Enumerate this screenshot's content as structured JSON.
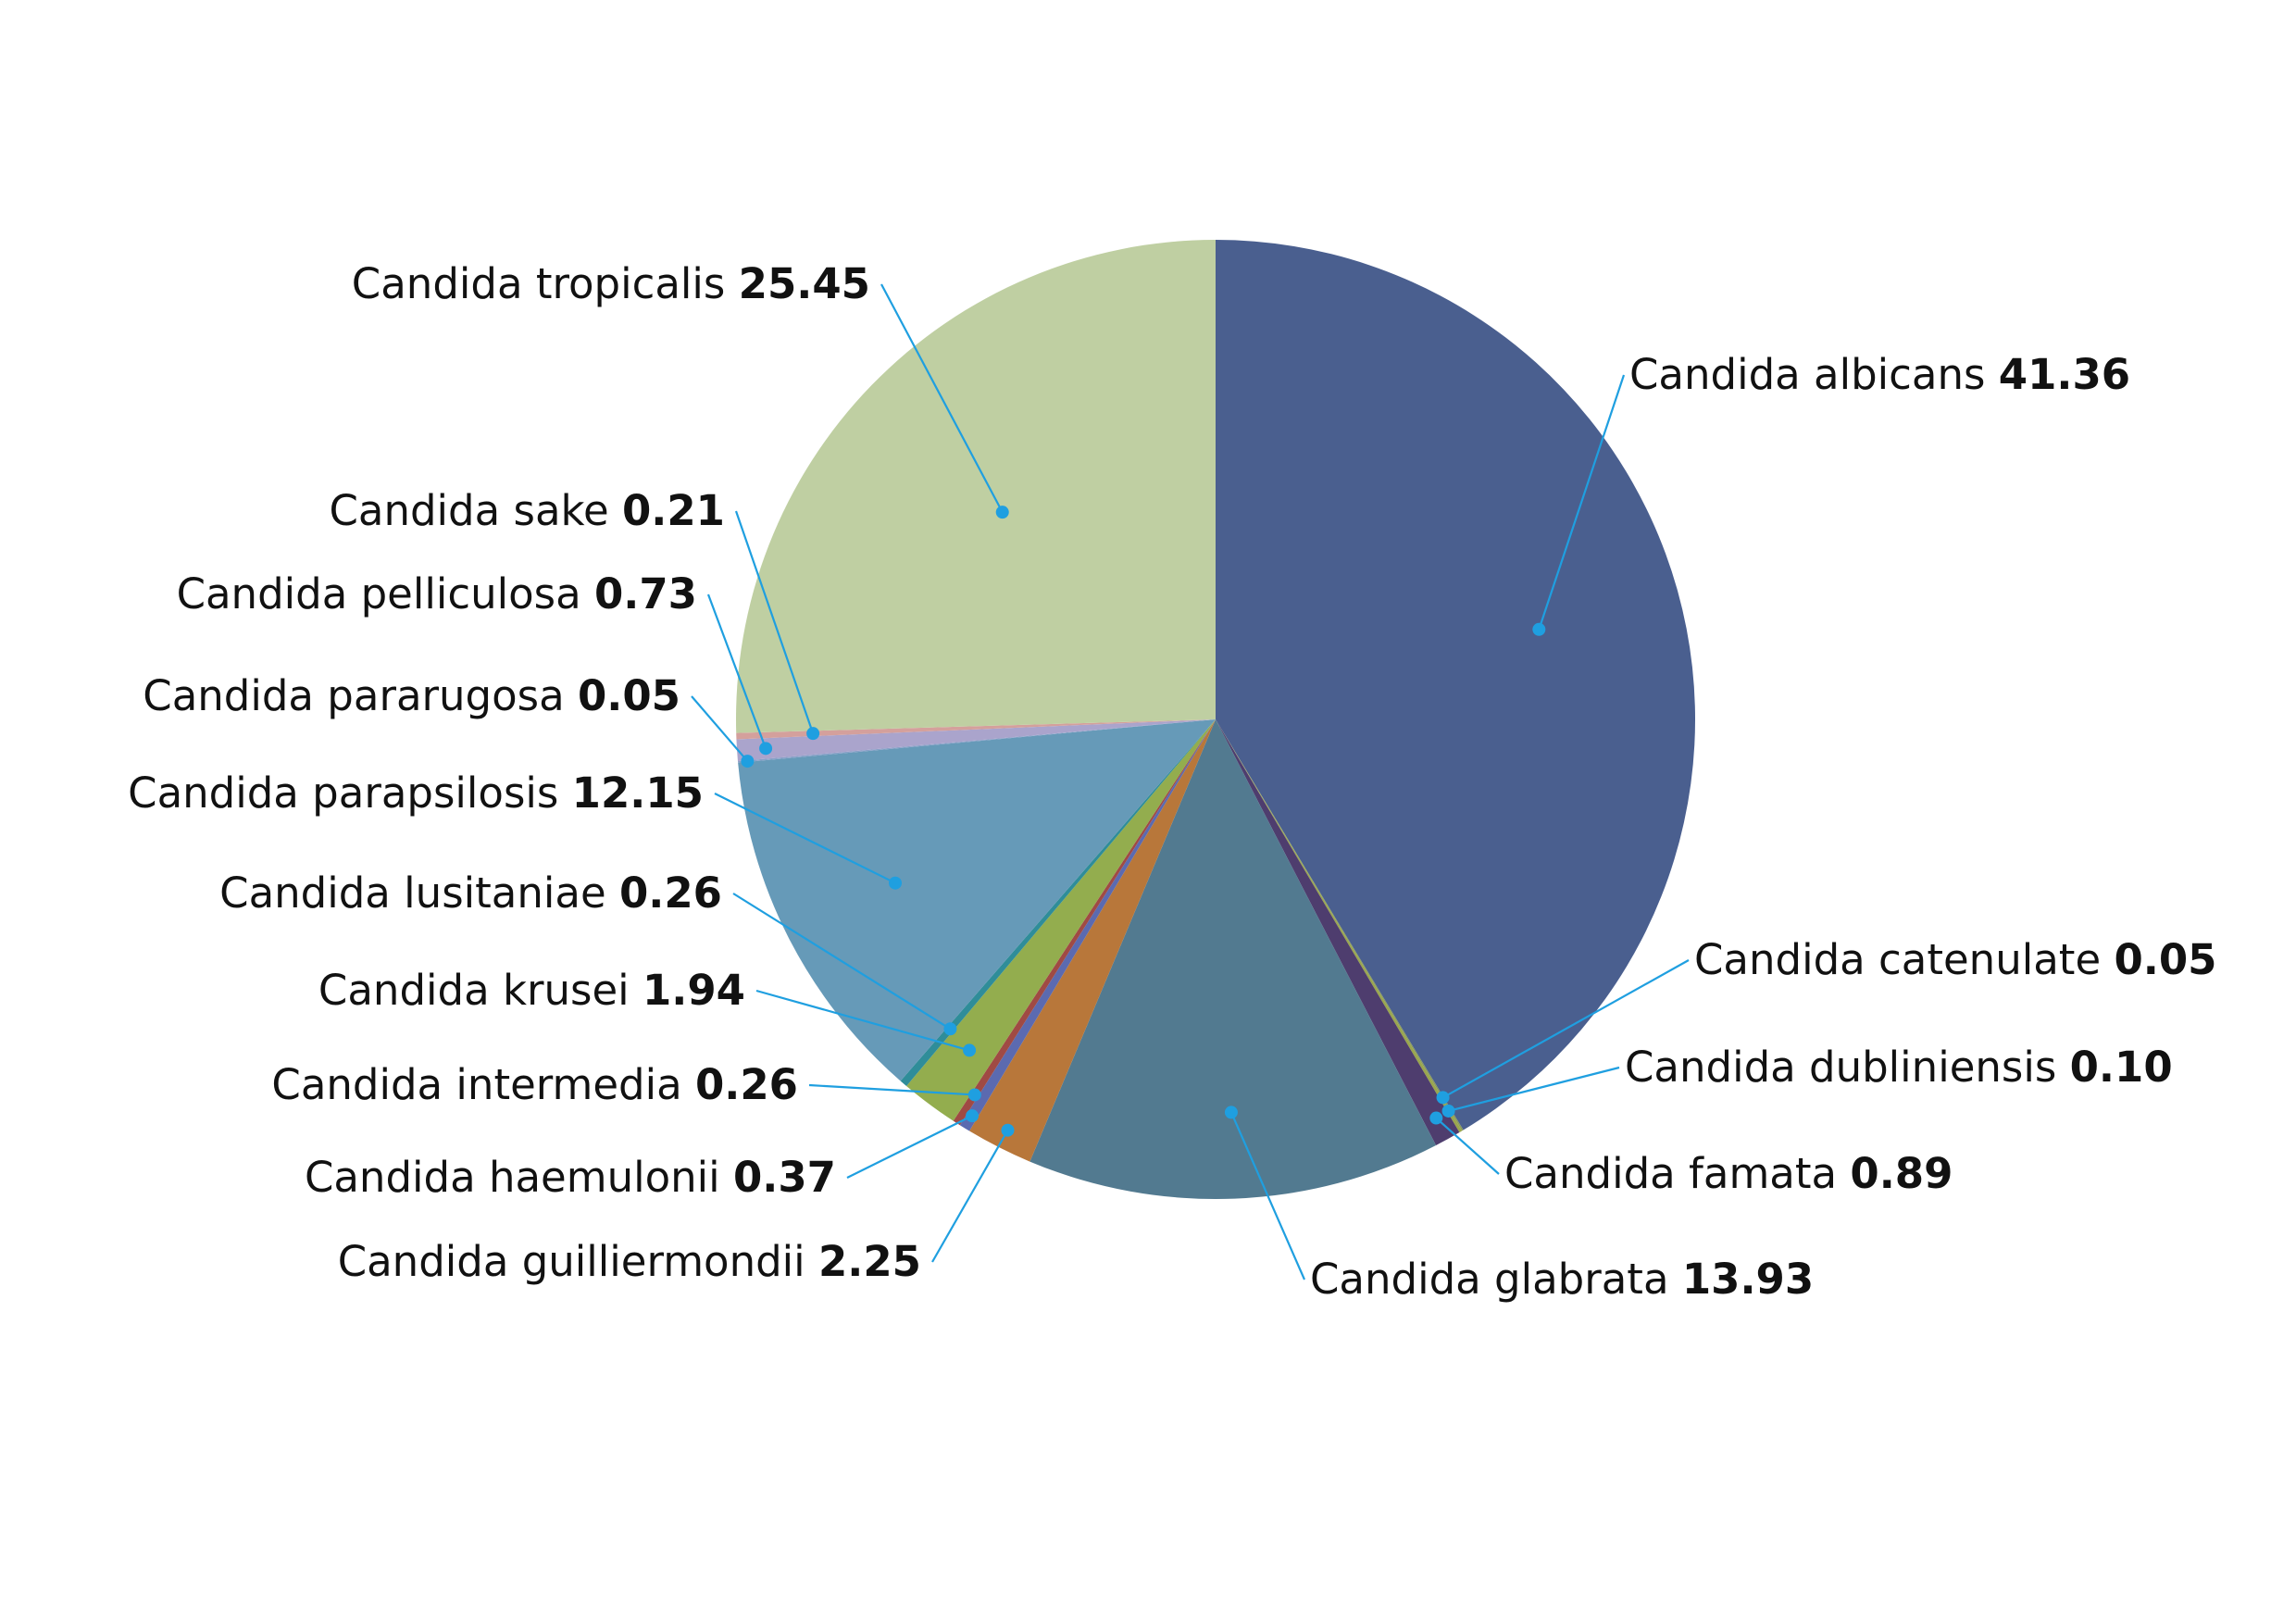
{
  "chart_data": {
    "type": "pie",
    "slices": [
      {
        "label": "Candida albicans",
        "value": 41.36,
        "value_text": "41.36",
        "color": "#4a5f8f"
      },
      {
        "label": "Candida catenulate",
        "value": 0.05,
        "value_text": "0.05",
        "color": "#8a9a5b"
      },
      {
        "label": "Candida dubliniensis",
        "value": 0.1,
        "value_text": "0.10",
        "color": "#9aa64c"
      },
      {
        "label": "Candida famata",
        "value": 0.89,
        "value_text": "0.89",
        "color": "#4e3d6e"
      },
      {
        "label": "Candida glabrata",
        "value": 13.93,
        "value_text": "13.93",
        "color": "#527a90"
      },
      {
        "label": "Candida guilliermondii",
        "value": 2.25,
        "value_text": "2.25",
        "color": "#b8773a"
      },
      {
        "label": "Candida haemulonii",
        "value": 0.37,
        "value_text": "0.37",
        "color": "#5b6ab0"
      },
      {
        "label": "Candida intermedia",
        "value": 0.26,
        "value_text": "0.26",
        "color": "#a04a44"
      },
      {
        "label": "Candida krusei",
        "value": 1.94,
        "value_text": "1.94",
        "color": "#93ad4e"
      },
      {
        "label": "Candida lusitaniae",
        "value": 0.26,
        "value_text": "0.26",
        "color": "#2f8d99"
      },
      {
        "label": "Candida parapsilosis",
        "value": 12.15,
        "value_text": "12.15",
        "color": "#669ab8"
      },
      {
        "label": "Candida pararugosa",
        "value": 0.05,
        "value_text": "0.05",
        "color": "#8aa0c8"
      },
      {
        "label": "Candida pelliculosa",
        "value": 0.73,
        "value_text": "0.73",
        "color": "#aaa4cc"
      },
      {
        "label": "Candida sake",
        "value": 0.21,
        "value_text": "0.21",
        "color": "#d4a09c"
      },
      {
        "label": "Candida tropicalis",
        "value": 25.45,
        "value_text": "25.45",
        "color": "#bfcfa2"
      }
    ]
  }
}
